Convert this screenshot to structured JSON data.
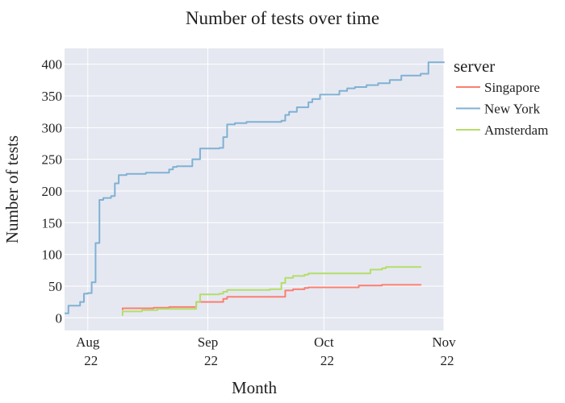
{
  "chart_data": {
    "type": "line",
    "title": "Number of tests over time",
    "xlabel": "Month",
    "ylabel": "Number of tests",
    "x_range": [
      "2022-07-26",
      "2022-11-01"
    ],
    "ylim": [
      -20,
      425
    ],
    "y_ticks": [
      0,
      50,
      100,
      150,
      200,
      250,
      300,
      350,
      400
    ],
    "x_ticks": [
      {
        "date": "2022-08-01",
        "line1": "Aug",
        "line2": "22"
      },
      {
        "date": "2022-09-01",
        "line1": "Sep",
        "line2": "22"
      },
      {
        "date": "2022-10-01",
        "line1": "Oct",
        "line2": "22"
      },
      {
        "date": "2022-11-01",
        "line1": "Nov",
        "line2": "22"
      }
    ],
    "grid": true,
    "legend": {
      "title": "server",
      "placement": "right"
    },
    "series": [
      {
        "name": "Singapore",
        "color": "#fa7f72",
        "points": [
          [
            "2022-08-10",
            12
          ],
          [
            "2022-08-10",
            15
          ],
          [
            "2022-08-18",
            16
          ],
          [
            "2022-08-22",
            17
          ],
          [
            "2022-08-29",
            18
          ],
          [
            "2022-08-29",
            25
          ],
          [
            "2022-09-05",
            26
          ],
          [
            "2022-09-05",
            30
          ],
          [
            "2022-09-06",
            33
          ],
          [
            "2022-09-21",
            37
          ],
          [
            "2022-09-21",
            43
          ],
          [
            "2022-09-23",
            45
          ],
          [
            "2022-09-26",
            47
          ],
          [
            "2022-09-27",
            48
          ],
          [
            "2022-10-10",
            49
          ],
          [
            "2022-10-10",
            51
          ],
          [
            "2022-10-16",
            52
          ],
          [
            "2022-10-26",
            53
          ]
        ]
      },
      {
        "name": "New York",
        "color": "#80b1d3",
        "points": [
          [
            "2022-07-26",
            7
          ],
          [
            "2022-07-27",
            10
          ],
          [
            "2022-07-27",
            19
          ],
          [
            "2022-07-30",
            21
          ],
          [
            "2022-07-30",
            25
          ],
          [
            "2022-07-31",
            38
          ],
          [
            "2022-08-01",
            39
          ],
          [
            "2022-08-02",
            56
          ],
          [
            "2022-08-03",
            118
          ],
          [
            "2022-08-04",
            186
          ],
          [
            "2022-08-05",
            189
          ],
          [
            "2022-08-07",
            192
          ],
          [
            "2022-08-08",
            212
          ],
          [
            "2022-08-09",
            225
          ],
          [
            "2022-08-11",
            227
          ],
          [
            "2022-08-16",
            229
          ],
          [
            "2022-08-22",
            234
          ],
          [
            "2022-08-23",
            238
          ],
          [
            "2022-08-24",
            239
          ],
          [
            "2022-08-28",
            240
          ],
          [
            "2022-08-28",
            250
          ],
          [
            "2022-08-30",
            255
          ],
          [
            "2022-08-30",
            267
          ],
          [
            "2022-09-04",
            268
          ],
          [
            "2022-09-05",
            285
          ],
          [
            "2022-09-06",
            305
          ],
          [
            "2022-09-08",
            307
          ],
          [
            "2022-09-11",
            309
          ],
          [
            "2022-09-20",
            311
          ],
          [
            "2022-09-21",
            320
          ],
          [
            "2022-09-22",
            325
          ],
          [
            "2022-09-24",
            332
          ],
          [
            "2022-09-27",
            340
          ],
          [
            "2022-09-28",
            345
          ],
          [
            "2022-09-30",
            352
          ],
          [
            "2022-10-05",
            353
          ],
          [
            "2022-10-05",
            358
          ],
          [
            "2022-10-07",
            362
          ],
          [
            "2022-10-09",
            364
          ],
          [
            "2022-10-12",
            367
          ],
          [
            "2022-10-15",
            370
          ],
          [
            "2022-10-18",
            375
          ],
          [
            "2022-10-21",
            382
          ],
          [
            "2022-10-26",
            385
          ],
          [
            "2022-10-28",
            403
          ],
          [
            "2022-11-01",
            404
          ]
        ]
      },
      {
        "name": "Amsterdam",
        "color": "#b3de69",
        "points": [
          [
            "2022-08-10",
            3
          ],
          [
            "2022-08-10",
            10
          ],
          [
            "2022-08-15",
            12
          ],
          [
            "2022-08-19",
            14
          ],
          [
            "2022-08-29",
            16
          ],
          [
            "2022-08-29",
            25
          ],
          [
            "2022-08-30",
            30
          ],
          [
            "2022-08-30",
            37
          ],
          [
            "2022-09-04",
            38
          ],
          [
            "2022-09-05",
            41
          ],
          [
            "2022-09-06",
            44
          ],
          [
            "2022-09-17",
            45
          ],
          [
            "2022-09-20",
            47
          ],
          [
            "2022-09-20",
            55
          ],
          [
            "2022-09-21",
            63
          ],
          [
            "2022-09-23",
            66
          ],
          [
            "2022-09-26",
            68
          ],
          [
            "2022-09-27",
            70
          ],
          [
            "2022-10-13",
            73
          ],
          [
            "2022-10-13",
            76
          ],
          [
            "2022-10-16",
            78
          ],
          [
            "2022-10-17",
            80
          ],
          [
            "2022-10-26",
            81
          ]
        ]
      }
    ]
  }
}
